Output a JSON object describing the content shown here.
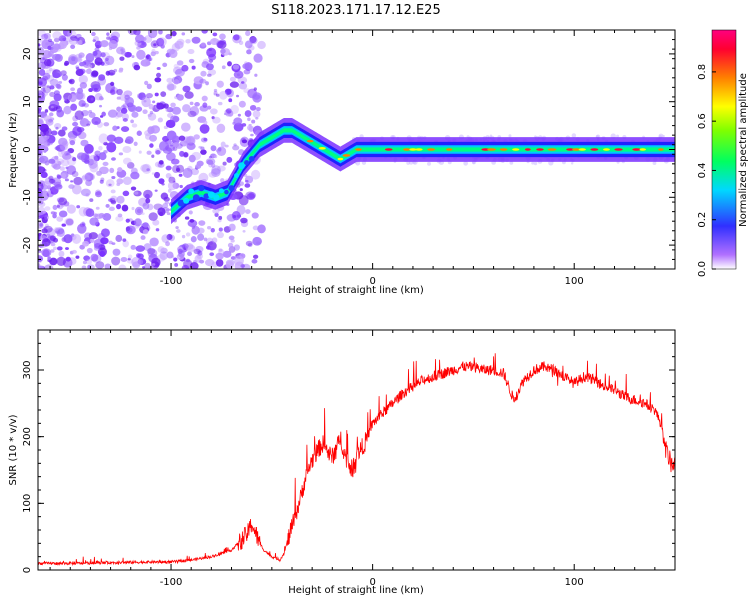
{
  "title": "S118.2023.171.17.12.E25",
  "chart_data": [
    {
      "type": "heatmap",
      "xlabel": "Height of straight line (km)",
      "ylabel": "Frequency (Hz)",
      "xlim": [
        -166,
        150
      ],
      "ylim": [
        -25,
        25
      ],
      "xticks": [
        -100,
        0,
        100
      ],
      "xtick_labels": [
        "-100",
        "0",
        "100"
      ],
      "yticks": [
        -20,
        -10,
        0,
        10,
        20
      ],
      "ytick_labels": [
        "-20",
        "-10",
        "0",
        "10",
        "20"
      ],
      "colorbar": {
        "label": "Normalized spectral amplitude",
        "range": [
          0,
          0.97
        ],
        "ticks": [
          0,
          0.2,
          0.4,
          0.6,
          0.8
        ],
        "tick_labels": [
          "0.0",
          "0.2",
          "0.4",
          "0.6",
          "0.8"
        ],
        "colors": [
          "#ffffff",
          "#7b2cff",
          "#3030ff",
          "#00d8ff",
          "#00ff40",
          "#ffff00",
          "#ff8000",
          "#ff0040",
          "#ff007f"
        ]
      },
      "ridge": {
        "x": [
          -100,
          -92,
          -85,
          -78,
          -72,
          -68,
          -64,
          -60,
          -56,
          -52,
          -48,
          -44,
          -40,
          -36,
          -32,
          -28,
          -24,
          -20,
          -16,
          -12,
          -8,
          -4,
          0,
          20,
          40,
          60,
          80,
          100,
          120,
          150
        ],
        "y": [
          -13,
          -10,
          -9,
          -10,
          -9,
          -6,
          -3,
          -1,
          1,
          2,
          3,
          4,
          4,
          3,
          2,
          1,
          0,
          -1,
          -2,
          -1,
          0,
          0,
          0,
          0,
          0,
          0,
          0,
          0,
          0,
          0
        ]
      },
      "noise_region_x": [
        -166,
        -55
      ]
    },
    {
      "type": "line",
      "xlabel": "Height of straight line (km)",
      "ylabel": "SNR (10 * v/v)",
      "xlim": [
        -166,
        150
      ],
      "ylim": [
        0,
        360
      ],
      "xticks": [
        -100,
        0,
        100
      ],
      "xtick_labels": [
        "-100",
        "0",
        "100"
      ],
      "yticks": [
        0,
        100,
        200,
        300
      ],
      "ytick_labels": [
        "0",
        "100",
        "200",
        "300"
      ],
      "series": [
        {
          "name": "SNR",
          "color": "#ff0000",
          "x": [
            -166,
            -150,
            -130,
            -110,
            -100,
            -90,
            -80,
            -75,
            -70,
            -65,
            -62,
            -60,
            -58,
            -56,
            -54,
            -52,
            -50,
            -48,
            -46,
            -44,
            -42,
            -40,
            -38,
            -36,
            -34,
            -32,
            -30,
            -28,
            -26,
            -24,
            -22,
            -20,
            -18,
            -16,
            -14,
            -12,
            -10,
            -8,
            -6,
            -4,
            -2,
            0,
            5,
            10,
            15,
            20,
            25,
            30,
            35,
            40,
            45,
            50,
            55,
            60,
            65,
            70,
            75,
            80,
            85,
            90,
            95,
            100,
            105,
            110,
            115,
            120,
            125,
            130,
            135,
            140,
            143,
            145,
            148,
            150
          ],
          "y": [
            10,
            10,
            11,
            12,
            12,
            15,
            20,
            25,
            30,
            45,
            55,
            70,
            55,
            40,
            30,
            25,
            20,
            18,
            15,
            25,
            45,
            65,
            85,
            105,
            130,
            150,
            165,
            175,
            185,
            190,
            175,
            170,
            180,
            200,
            175,
            160,
            150,
            175,
            180,
            190,
            205,
            220,
            235,
            250,
            265,
            275,
            285,
            290,
            295,
            300,
            305,
            305,
            300,
            300,
            295,
            255,
            285,
            300,
            305,
            300,
            290,
            280,
            290,
            285,
            275,
            270,
            260,
            255,
            250,
            240,
            220,
            185,
            160,
            160
          ]
        }
      ]
    }
  ]
}
